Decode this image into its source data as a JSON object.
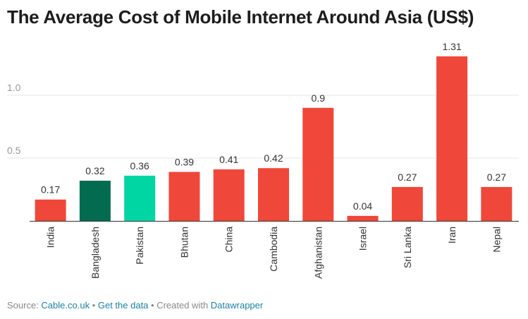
{
  "chart_data": {
    "type": "bar",
    "title": "The Average Cost of Mobile Internet Around Asia (US$)",
    "categories": [
      "India",
      "Bangladesh",
      "Pakistan",
      "Bhutan",
      "China",
      "Cambodia",
      "Afghanistan",
      "Israel",
      "Sri Lanka",
      "Iran",
      "Nepal"
    ],
    "values": [
      0.17,
      0.32,
      0.36,
      0.39,
      0.41,
      0.42,
      0.9,
      0.04,
      0.27,
      1.31,
      0.27
    ],
    "value_labels": [
      "0.17",
      "0.32",
      "0.36",
      "0.39",
      "0.41",
      "0.42",
      "0.9",
      "0.04",
      "0.27",
      "1.31",
      "0.27"
    ],
    "colors": [
      "#ef473a",
      "#036c50",
      "#00d6a3",
      "#ef473a",
      "#ef473a",
      "#ef473a",
      "#ef473a",
      "#ef473a",
      "#ef473a",
      "#ef473a",
      "#ef473a"
    ],
    "yticks": [
      0.5,
      1.0
    ],
    "ytick_labels": [
      "0.5",
      "1.0"
    ],
    "ylim": [
      0,
      1.31
    ],
    "xlabel": "",
    "ylabel": "",
    "grid": true
  },
  "footer": {
    "source_prefix": "Source: ",
    "source_link": "Cable.co.uk",
    "sep1": " • ",
    "data_link": "Get the data",
    "sep2": " • Created with ",
    "tool_link": "Datawrapper"
  }
}
